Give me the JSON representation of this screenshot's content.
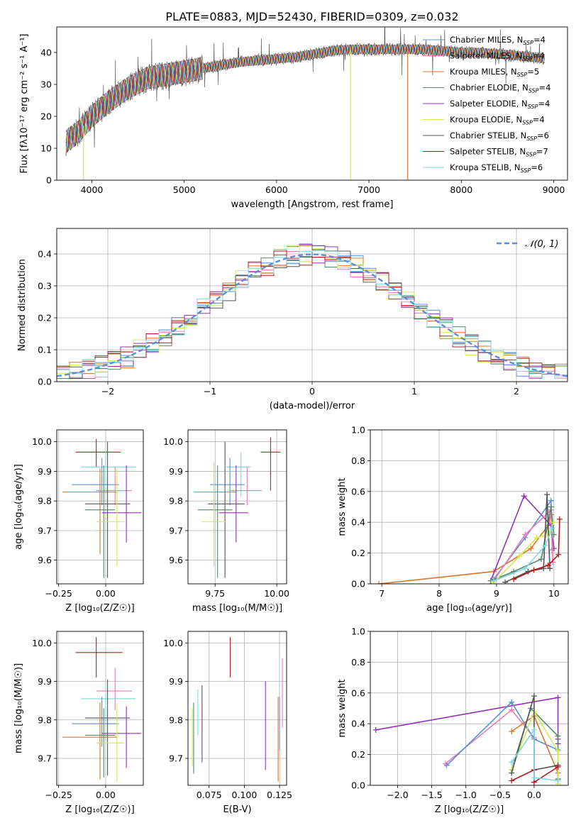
{
  "figure_title": "PLATE=0883, MJD=52430, FIBERID=0309, z=0.032",
  "colors": {
    "blue": "#5b8ed6",
    "pink": "#e27fb7",
    "orange": "#d9762b",
    "green": "#55876a",
    "purple": "#9430b8",
    "lime": "#d2e857",
    "gray": "#555555",
    "red": "#b01c1c",
    "cyan": "#7fd7e0"
  },
  "chart_data": [
    {
      "id": "spectrum",
      "type": "line",
      "xlabel": "wavelength [Angstrom, rest frame]",
      "ylabel": "Flux [fλ10⁻¹⁷ erg cm⁻² s⁻¹ A⁻¹]",
      "xlim": [
        3620,
        9150
      ],
      "ylim": [
        0,
        48
      ],
      "xticks": [
        4000,
        5000,
        6000,
        7000,
        8000,
        9000
      ],
      "yticks": [
        0,
        10,
        20,
        30,
        40
      ],
      "grid": false,
      "legend_position": "top-right",
      "series": [
        {
          "name": "Chabrier MILES, N_SSP=4",
          "color_key": "blue"
        },
        {
          "name": "Salpeter MILES, N_SSP=4",
          "color_key": "pink"
        },
        {
          "name": "Kroupa MILES, N_SSP=5",
          "color_key": "orange"
        },
        {
          "name": "Chabrier ELODIE, N_SSP=4",
          "color_key": "green"
        },
        {
          "name": "Salpeter ELODIE, N_SSP=4",
          "color_key": "purple"
        },
        {
          "name": "Kroupa ELODIE, N_SSP=4",
          "color_key": "lime"
        },
        {
          "name": "Chabrier STELIB, N_SSP=6",
          "color_key": "gray"
        },
        {
          "name": "Salpeter STELIB, N_SSP=7",
          "color_key": "red"
        },
        {
          "name": "Kroupa STELIB, N_SSP=6",
          "color_key": "cyan"
        }
      ],
      "continuum": {
        "x": [
          3720,
          3850,
          4000,
          4200,
          4400,
          4600,
          4800,
          5000,
          5200,
          5400,
          5600,
          5800,
          6000,
          6200,
          6400,
          6600,
          6800,
          7000,
          7200,
          7400,
          7600,
          7800,
          8000,
          8200,
          8400,
          8600,
          8800,
          8900
        ],
        "y": [
          12,
          15,
          20,
          25,
          29,
          32,
          33,
          34,
          35,
          36,
          37,
          37.5,
          38,
          38.5,
          39.5,
          40.5,
          41,
          41,
          41,
          41,
          41,
          40.5,
          40,
          40,
          39.5,
          39,
          38.5,
          38
        ]
      },
      "drop_lines": [
        {
          "x": 3910,
          "y_to": 0,
          "color_key": "lime"
        },
        {
          "x": 6800,
          "y_to": 0,
          "color_key": "lime"
        },
        {
          "x": 7420,
          "y_to": 0,
          "color_key": "orange"
        }
      ]
    },
    {
      "id": "residuals",
      "type": "histogram",
      "xlabel": "(data-model)/error",
      "ylabel": "Normed distribution",
      "xlim": [
        -2.5,
        2.5
      ],
      "ylim": [
        0,
        0.48
      ],
      "xticks": [
        -2,
        -1,
        0,
        1,
        2
      ],
      "yticks": [
        0.0,
        0.1,
        0.2,
        0.3,
        0.4
      ],
      "grid": true,
      "bin_edges": [
        -2.5,
        -2.375,
        -2.25,
        -2.125,
        -2.0,
        -1.875,
        -1.75,
        -1.625,
        -1.5,
        -1.375,
        -1.25,
        -1.125,
        -1.0,
        -0.875,
        -0.75,
        -0.625,
        -0.5,
        -0.375,
        -0.25,
        -0.125,
        0.0,
        0.125,
        0.25,
        0.375,
        0.5,
        0.625,
        0.75,
        0.875,
        1.0,
        1.125,
        1.25,
        1.375,
        1.5,
        1.625,
        1.75,
        1.875,
        2.0,
        2.125,
        2.25,
        2.375,
        2.5
      ],
      "gaussian_label": "𝒩(0, 1)",
      "hist_series_color_keys": [
        "blue",
        "pink",
        "orange",
        "green",
        "purple",
        "lime",
        "gray",
        "red",
        "cyan"
      ]
    },
    {
      "id": "age_vs_Z",
      "type": "scatter",
      "xlabel": "Z [log₁₀(Z/Z☉)]",
      "ylabel": "age  [log₁₀(age/yr)]",
      "xlim": [
        -0.26,
        0.2
      ],
      "ylim": [
        9.52,
        10.04
      ],
      "xticks": [
        -0.25,
        0.0
      ],
      "yticks": [
        9.6,
        9.7,
        9.8,
        9.9,
        10.0
      ],
      "grid": true,
      "points": [
        {
          "color_key": "red",
          "x": -0.05,
          "y": 9.965,
          "xerr": [
            0.11,
            0.13
          ],
          "yerr": [
            0.05,
            0.045
          ]
        },
        {
          "color_key": "cyan",
          "x": 0.0,
          "y": 9.915,
          "xerr": [
            0.13,
            0.16
          ],
          "yerr": [
            0.08,
            0.05
          ]
        },
        {
          "color_key": "blue",
          "x": -0.02,
          "y": 9.855,
          "xerr": [
            0.16,
            0.09
          ],
          "yerr": [
            0.07,
            0.09
          ]
        },
        {
          "color_key": "pink",
          "x": 0.05,
          "y": 9.835,
          "xerr": [
            0.1,
            0.09
          ],
          "yerr": [
            0.05,
            0.08
          ]
        },
        {
          "color_key": "orange",
          "x": -0.03,
          "y": 9.83,
          "xerr": [
            0.2,
            0.09
          ],
          "yerr": [
            0.21,
            0.08
          ]
        },
        {
          "color_key": "gray",
          "x": 0.01,
          "y": 9.79,
          "xerr": [
            0.12,
            0.12
          ],
          "yerr": [
            0.25,
            0.21
          ]
        },
        {
          "color_key": "green",
          "x": -0.01,
          "y": 9.77,
          "xerr": [
            0.1,
            0.06
          ],
          "yerr": [
            0.23,
            0.15
          ]
        },
        {
          "color_key": "purple",
          "x": 0.11,
          "y": 9.76,
          "xerr": [
            0.13,
            0.08
          ],
          "yerr": [
            0.1,
            0.16
          ]
        },
        {
          "color_key": "lime",
          "x": 0.06,
          "y": 9.73,
          "xerr": [
            0.11,
            0.04
          ],
          "yerr": [
            0.15,
            0.18
          ]
        }
      ]
    },
    {
      "id": "age_vs_mass",
      "type": "scatter",
      "xlabel": "mass [log₁₀(M/M☉)]",
      "ylabel": "",
      "xlim": [
        9.64,
        10.04
      ],
      "ylim": [
        9.52,
        10.04
      ],
      "xticks": [
        9.75,
        10.0
      ],
      "yticks": [
        9.6,
        9.7,
        9.8,
        9.9,
        10.0
      ],
      "grid": true,
      "points": [
        {
          "color_key": "red",
          "x": 9.975,
          "y": 9.965,
          "xerr": [
            0.04,
            0.04
          ],
          "yerr": [
            0.13,
            0.05
          ]
        },
        {
          "color_key": "cyan",
          "x": 9.855,
          "y": 9.915,
          "xerr": [
            0.06,
            0.04
          ],
          "yerr": [
            0.1,
            0.05
          ]
        },
        {
          "color_key": "blue",
          "x": 9.81,
          "y": 9.855,
          "xerr": [
            0.08,
            0.06
          ],
          "yerr": [
            0.07,
            0.09
          ]
        },
        {
          "color_key": "pink",
          "x": 9.88,
          "y": 9.835,
          "xerr": [
            0.07,
            0.06
          ],
          "yerr": [
            0.05,
            0.08
          ]
        },
        {
          "color_key": "orange",
          "x": 9.745,
          "y": 9.83,
          "xerr": [
            0.08,
            0.09
          ],
          "yerr": [
            0.21,
            0.1
          ]
        },
        {
          "color_key": "gray",
          "x": 9.79,
          "y": 9.79,
          "xerr": [
            0.07,
            0.08
          ],
          "yerr": [
            0.25,
            0.21
          ]
        },
        {
          "color_key": "green",
          "x": 9.76,
          "y": 9.77,
          "xerr": [
            0.08,
            0.06
          ],
          "yerr": [
            0.23,
            0.15
          ]
        },
        {
          "color_key": "purple",
          "x": 9.835,
          "y": 9.76,
          "xerr": [
            0.07,
            0.05
          ],
          "yerr": [
            0.1,
            0.16
          ]
        },
        {
          "color_key": "lime",
          "x": 9.745,
          "y": 9.73,
          "xerr": [
            0.05,
            0.05
          ],
          "yerr": [
            0.15,
            0.2
          ]
        }
      ]
    },
    {
      "id": "massweight_vs_age",
      "type": "line",
      "xlabel": "age  [log₁₀(age/yr)]",
      "ylabel": "mass weight",
      "xlim": [
        6.8,
        10.25
      ],
      "ylim": [
        0,
        1
      ],
      "xticks": [
        7,
        8,
        9,
        10
      ],
      "yticks": [
        0.0,
        0.2,
        0.4,
        0.6,
        0.8,
        1.0
      ],
      "grid": true,
      "series": [
        {
          "color_key": "orange",
          "x": [
            6.95,
            8.95,
            9.6,
            9.9,
            9.95
          ],
          "y": [
            0.0,
            0.08,
            0.23,
            0.38,
            0.45
          ]
        },
        {
          "color_key": "purple",
          "x": [
            8.9,
            9.48,
            9.95,
            10.0
          ],
          "y": [
            0.02,
            0.57,
            0.38,
            0.23
          ]
        },
        {
          "color_key": "blue",
          "x": [
            8.95,
            9.5,
            9.95,
            9.97
          ],
          "y": [
            0.03,
            0.3,
            0.54,
            0.22
          ]
        },
        {
          "color_key": "pink",
          "x": [
            8.95,
            9.5,
            9.95,
            9.98
          ],
          "y": [
            0.02,
            0.32,
            0.48,
            0.14
          ]
        },
        {
          "color_key": "green",
          "x": [
            8.9,
            9.3,
            9.78,
            9.95,
            10.0
          ],
          "y": [
            0.02,
            0.08,
            0.16,
            0.5,
            0.32
          ]
        },
        {
          "color_key": "lime",
          "x": [
            8.95,
            9.4,
            9.7,
            9.9,
            10.0
          ],
          "y": [
            0.01,
            0.18,
            0.3,
            0.32,
            0.4
          ]
        },
        {
          "color_key": "gray",
          "x": [
            9.15,
            9.55,
            9.82,
            9.88,
            9.93
          ],
          "y": [
            0.01,
            0.08,
            0.1,
            0.58,
            0.1
          ]
        },
        {
          "color_key": "red",
          "x": [
            9.3,
            9.65,
            9.9,
            10.08,
            10.1
          ],
          "y": [
            0.03,
            0.09,
            0.12,
            0.19,
            0.42
          ]
        },
        {
          "color_key": "cyan",
          "x": [
            8.95,
            9.5,
            9.85,
            9.97
          ],
          "y": [
            0.02,
            0.1,
            0.25,
            0.36
          ]
        }
      ]
    },
    {
      "id": "mass_vs_Z",
      "type": "scatter",
      "xlabel": "Z [log₁₀(Z/Z☉)]",
      "ylabel": "mass [log₁₀(M/M☉)]",
      "xlim": [
        -0.26,
        0.2
      ],
      "ylim": [
        9.63,
        10.03
      ],
      "xticks": [
        -0.25,
        0.0
      ],
      "yticks": [
        9.7,
        9.8,
        9.9,
        10.0
      ],
      "grid": true,
      "points": [
        {
          "color_key": "red",
          "x": -0.05,
          "y": 9.975,
          "xerr": [
            0.11,
            0.14
          ],
          "yerr": [
            0.065,
            0.04
          ]
        },
        {
          "color_key": "cyan",
          "x": 0.0,
          "y": 9.855,
          "xerr": [
            0.13,
            0.16
          ],
          "yerr": [
            0.06,
            0.04
          ]
        },
        {
          "color_key": "pink",
          "x": 0.05,
          "y": 9.875,
          "xerr": [
            0.1,
            0.09
          ],
          "yerr": [
            0.05,
            0.06
          ]
        },
        {
          "color_key": "blue",
          "x": -0.02,
          "y": 9.79,
          "xerr": [
            0.16,
            0.09
          ],
          "yerr": [
            0.06,
            0.07
          ]
        },
        {
          "color_key": "gray",
          "x": 0.01,
          "y": 9.805,
          "xerr": [
            0.12,
            0.12
          ],
          "yerr": [
            0.15,
            0.1
          ]
        },
        {
          "color_key": "purple",
          "x": 0.11,
          "y": 9.765,
          "xerr": [
            0.13,
            0.08
          ],
          "yerr": [
            0.09,
            0.07
          ]
        },
        {
          "color_key": "orange",
          "x": -0.03,
          "y": 9.755,
          "xerr": [
            0.2,
            0.09
          ],
          "yerr": [
            0.11,
            0.09
          ]
        },
        {
          "color_key": "green",
          "x": -0.01,
          "y": 9.76,
          "xerr": [
            0.1,
            0.06
          ],
          "yerr": [
            0.11,
            0.07
          ]
        },
        {
          "color_key": "lime",
          "x": 0.06,
          "y": 9.74,
          "xerr": [
            0.11,
            0.04
          ],
          "yerr": [
            0.1,
            0.1
          ]
        }
      ]
    },
    {
      "id": "mass_vs_ebv",
      "type": "scatter",
      "xlabel": "E(B-V)",
      "ylabel": "",
      "xlim": [
        0.06,
        0.13
      ],
      "ylim": [
        9.63,
        10.03
      ],
      "xticks": [
        0.075,
        0.1,
        0.125
      ],
      "yticks": [
        9.7,
        9.8,
        9.9,
        10.0
      ],
      "grid": true,
      "points": [
        {
          "color_key": "red",
          "x": 0.09,
          "yerr_lo": 9.91,
          "yerr_hi": 10.015
        },
        {
          "color_key": "pink",
          "x": 0.127,
          "yerr_lo": 9.78,
          "yerr_hi": 9.96
        },
        {
          "color_key": "purple",
          "x": 0.115,
          "yerr_lo": 9.67,
          "yerr_hi": 9.9
        },
        {
          "color_key": "orange",
          "x": 0.124,
          "yerr_lo": 9.64,
          "yerr_hi": 9.86
        },
        {
          "color_key": "blue",
          "x": 0.125,
          "yerr_lo": 9.72,
          "yerr_hi": 9.86
        },
        {
          "color_key": "gray",
          "x": 0.07,
          "yerr_lo": 9.69,
          "yerr_hi": 9.89
        },
        {
          "color_key": "cyan",
          "x": 0.067,
          "yerr_lo": 9.76,
          "yerr_hi": 9.88
        },
        {
          "color_key": "green",
          "x": 0.064,
          "yerr_lo": 9.66,
          "yerr_hi": 9.845
        },
        {
          "color_key": "lime",
          "x": 0.063,
          "yerr_lo": 9.68,
          "yerr_hi": 9.83
        }
      ]
    },
    {
      "id": "massweight_vs_Z",
      "type": "line",
      "xlabel": "Z [log₁₀(Z/Z☉)]",
      "ylabel": "mass weight",
      "xlim": [
        -2.4,
        0.5
      ],
      "ylim": [
        0,
        1
      ],
      "xticks": [
        -2.0,
        -1.5,
        -1.0,
        -0.5,
        0.0
      ],
      "yticks": [
        0.0,
        0.2,
        0.4,
        0.6,
        0.8,
        1.0
      ],
      "grid": true,
      "series": [
        {
          "color_key": "purple",
          "x": [
            -2.32,
            0.35,
            0.35,
            0.35
          ],
          "y": [
            0.36,
            0.57,
            0.3,
            0.27
          ]
        },
        {
          "color_key": "pink",
          "x": [
            -1.3,
            -0.33,
            0.0,
            0.0
          ],
          "y": [
            0.14,
            0.49,
            0.31,
            0.02
          ]
        },
        {
          "color_key": "blue",
          "x": [
            -1.28,
            -0.33,
            0.0,
            0.35
          ],
          "y": [
            0.13,
            0.54,
            0.3,
            0.23
          ]
        },
        {
          "color_key": "orange",
          "x": [
            -0.33,
            0.0,
            0.35,
            0.35
          ],
          "y": [
            0.35,
            0.45,
            0.08,
            0.04
          ]
        },
        {
          "color_key": "green",
          "x": [
            -0.33,
            -0.05,
            0.35,
            0.35
          ],
          "y": [
            0.1,
            0.5,
            0.32,
            0.04
          ]
        },
        {
          "color_key": "lime",
          "x": [
            -0.33,
            0.0,
            0.35,
            0.35
          ],
          "y": [
            0.1,
            0.48,
            0.22,
            0.01
          ]
        },
        {
          "color_key": "gray",
          "x": [
            -0.33,
            0.0,
            0.0,
            0.35
          ],
          "y": [
            0.08,
            0.58,
            0.1,
            0.13
          ]
        },
        {
          "color_key": "red",
          "x": [
            -0.33,
            0.0,
            0.0,
            0.35
          ],
          "y": [
            0.03,
            0.1,
            0.02,
            0.12
          ]
        },
        {
          "color_key": "cyan",
          "x": [
            -0.33,
            0.0,
            0.0,
            0.35
          ],
          "y": [
            0.15,
            0.36,
            0.05,
            0.03
          ]
        }
      ]
    }
  ]
}
